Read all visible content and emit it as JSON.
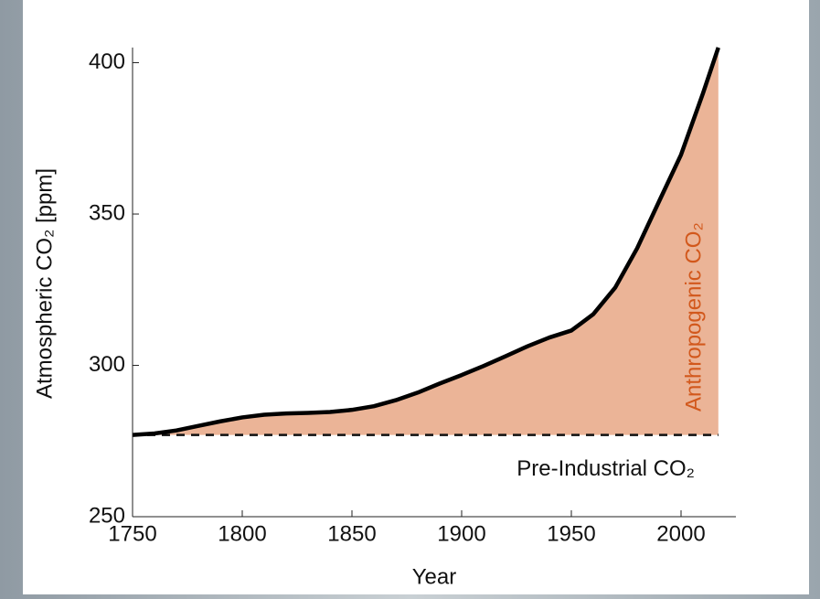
{
  "chart_data": {
    "type": "area",
    "xlabel": "Year",
    "ylabel": "Atmospheric CO₂ [ppm]",
    "x": [
      1750,
      1760,
      1770,
      1780,
      1790,
      1800,
      1810,
      1820,
      1830,
      1840,
      1850,
      1860,
      1870,
      1880,
      1890,
      1900,
      1910,
      1920,
      1930,
      1940,
      1950,
      1960,
      1970,
      1980,
      1990,
      2000,
      2010,
      2017
    ],
    "series": [
      {
        "name": "Atmospheric CO₂",
        "color": "#000000",
        "fill": "#ebb497",
        "values": [
          277,
          277.5,
          278.5,
          280,
          281.5,
          282.8,
          283.7,
          284.1,
          284.3,
          284.6,
          285.3,
          286.5,
          288.5,
          291,
          294,
          296.8,
          299.8,
          303,
          306.3,
          309.2,
          311.5,
          316.9,
          325.7,
          338.7,
          354.2,
          369.6,
          389.9,
          405
        ]
      }
    ],
    "baseline": 277,
    "baseline_label": "Pre-Industrial CO₂",
    "area_label": "Anthropogenic CO₂",
    "xlim": [
      1750,
      2025
    ],
    "ylim": [
      250,
      405
    ],
    "xticks": [
      1750,
      1800,
      1850,
      1900,
      1950,
      2000
    ],
    "yticks": [
      250,
      300,
      350,
      400
    ]
  }
}
